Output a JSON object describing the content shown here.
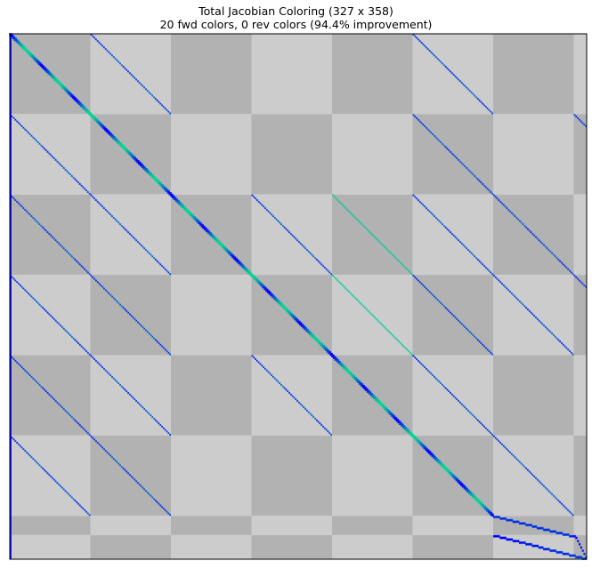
{
  "chart_data": {
    "type": "heatmap",
    "title": "Total Jacobian Coloring (327 x 358)",
    "subtitle": "20 fwd colors, 0 rev colors (94.4% improvement)",
    "n_rows": 327,
    "n_cols": 358,
    "fwd_colors": 20,
    "rev_colors": 0,
    "improvement_percent": 94.4,
    "row_blocks": [
      0,
      50,
      100,
      150,
      200,
      250,
      300,
      312,
      327
    ],
    "col_blocks": [
      0,
      50,
      100,
      150,
      200,
      250,
      300,
      350,
      358
    ],
    "block_shades": {
      "light": "#cccccc",
      "dark": "#b2b2b2"
    },
    "colormap": "winter",
    "main_diagonal": {
      "rows": [
        0,
        299
      ],
      "cols": [
        0,
        299
      ]
    },
    "tail_diagonals": [
      {
        "rows": [
          300,
          312
        ],
        "cols": [
          300,
          350
        ]
      },
      {
        "rows": [
          312,
          326
        ],
        "cols": [
          300,
          358
        ]
      },
      {
        "rows": [
          312,
          326
        ],
        "cols": [
          350,
          358
        ]
      }
    ],
    "off_diagonal_bands": [
      {
        "row_block": 0,
        "col_block": 1
      },
      {
        "row_block": 0,
        "col_block": 5
      },
      {
        "row_block": 1,
        "col_block": 0
      },
      {
        "row_block": 1,
        "col_block": 5
      },
      {
        "row_block": 1,
        "col_block": 7
      },
      {
        "row_block": 2,
        "col_block": 0
      },
      {
        "row_block": 2,
        "col_block": 1
      },
      {
        "row_block": 2,
        "col_block": 3
      },
      {
        "row_block": 2,
        "col_block": 4
      },
      {
        "row_block": 2,
        "col_block": 5
      },
      {
        "row_block": 2,
        "col_block": 6
      },
      {
        "row_block": 3,
        "col_block": 0
      },
      {
        "row_block": 3,
        "col_block": 1
      },
      {
        "row_block": 3,
        "col_block": 4
      },
      {
        "row_block": 3,
        "col_block": 5
      },
      {
        "row_block": 3,
        "col_block": 6
      },
      {
        "row_block": 3,
        "col_block": 7
      },
      {
        "row_block": 4,
        "col_block": 0
      },
      {
        "row_block": 4,
        "col_block": 1
      },
      {
        "row_block": 4,
        "col_block": 3
      },
      {
        "row_block": 4,
        "col_block": 5
      },
      {
        "row_block": 5,
        "col_block": 0
      },
      {
        "row_block": 5,
        "col_block": 1
      },
      {
        "row_block": 5,
        "col_block": 6
      }
    ],
    "first_column_nonzero": true
  }
}
